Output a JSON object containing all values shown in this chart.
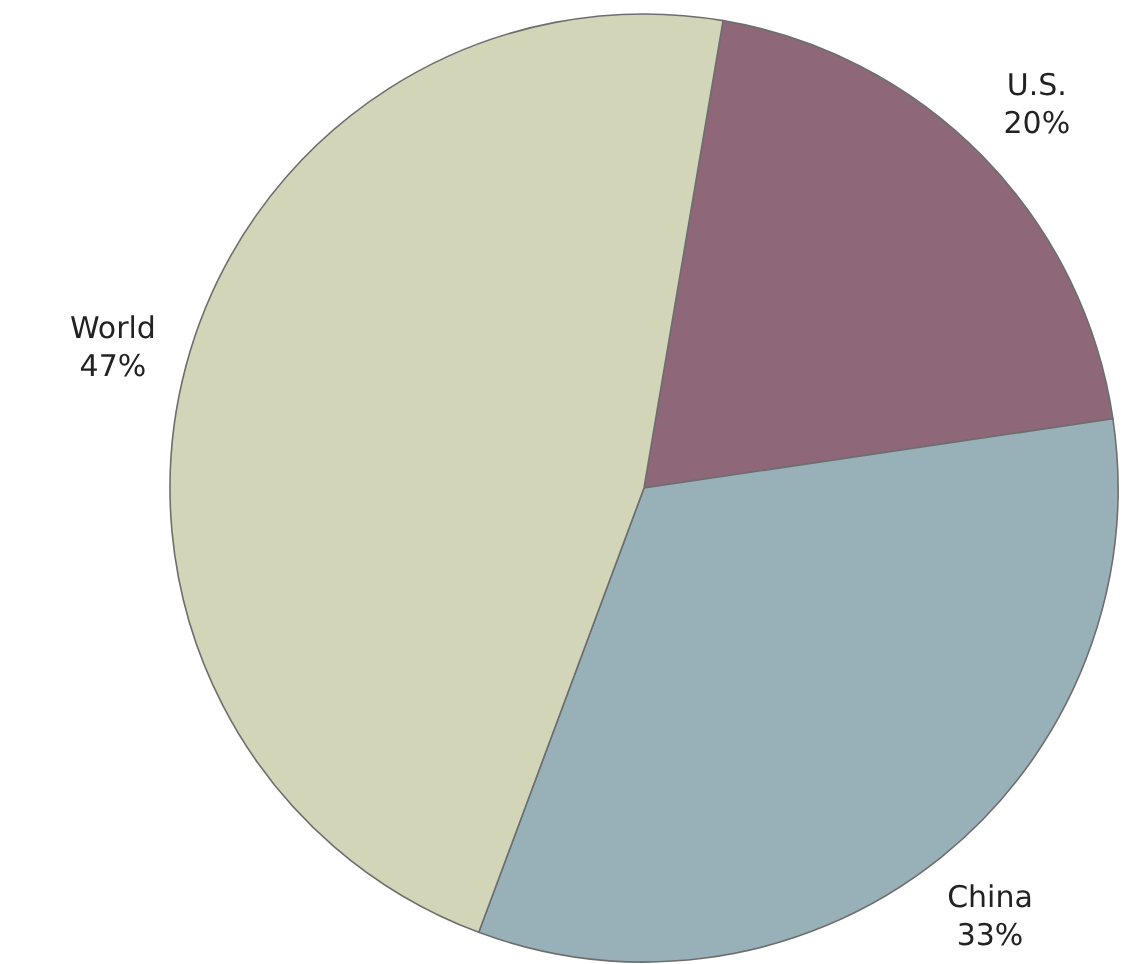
{
  "chart_data": {
    "type": "pie",
    "categories": [
      "U.S.",
      "China",
      "World"
    ],
    "values": [
      20,
      33,
      47
    ],
    "value_labels": [
      "20%",
      "33%",
      "47%"
    ],
    "colors": [
      "#8e6878",
      "#98b0b8",
      "#d3d5b8"
    ]
  }
}
